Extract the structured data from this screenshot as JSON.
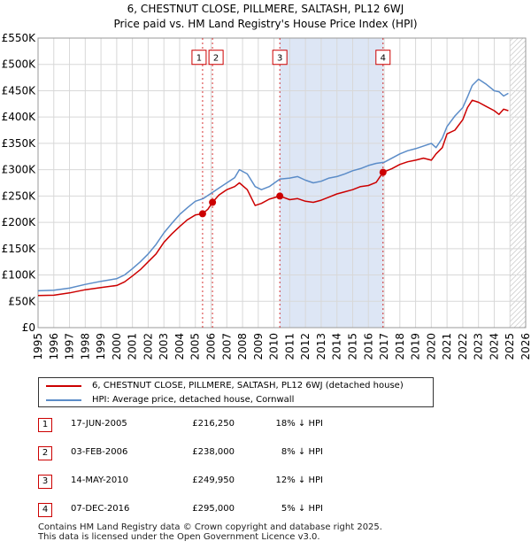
{
  "header": {
    "title_line1": "6, CHESTNUT CLOSE, PILLMERE, SALTASH, PL12 6WJ",
    "title_line2": "Price paid vs. HM Land Registry's House Price Index (HPI)"
  },
  "colors": {
    "property_line": "#cc0000",
    "hpi_line": "#5b8cc8",
    "shade": "#dde6f5",
    "grid": "#d8d8d8",
    "marker_box": "#cc0000"
  },
  "legend": {
    "property_label": "6, CHESTNUT CLOSE, PILLMERE, SALTASH, PL12 6WJ (detached house)",
    "hpi_label": "HPI: Average price, detached house, Cornwall"
  },
  "sales": [
    {
      "num": "1",
      "date": "17-JUN-2005",
      "price": "£216,250",
      "pct": "18% ↓ HPI"
    },
    {
      "num": "2",
      "date": "03-FEB-2006",
      "price": "£238,000",
      "pct": "8% ↓ HPI"
    },
    {
      "num": "3",
      "date": "14-MAY-2010",
      "price": "£249,950",
      "pct": "12% ↓ HPI"
    },
    {
      "num": "4",
      "date": "07-DEC-2016",
      "price": "£295,000",
      "pct": "5% ↓ HPI"
    }
  ],
  "footer": {
    "line1": "Contains HM Land Registry data © Crown copyright and database right 2025.",
    "line2": "This data is licensed under the Open Government Licence v3.0."
  },
  "chart_data": {
    "type": "line",
    "title": "Price paid vs. HM Land Registry's House Price Index (HPI)",
    "xlim": [
      1995,
      2026
    ],
    "ylim": [
      0,
      550000
    ],
    "x_ticks": [
      1995,
      1996,
      1997,
      1998,
      1999,
      2000,
      2001,
      2002,
      2003,
      2004,
      2005,
      2006,
      2007,
      2008,
      2009,
      2010,
      2011,
      2012,
      2013,
      2014,
      2015,
      2016,
      2017,
      2018,
      2019,
      2020,
      2021,
      2022,
      2023,
      2024,
      2025,
      2026
    ],
    "y_ticks": [
      {
        "value": 0,
        "label": "£0"
      },
      {
        "value": 50000,
        "label": "£50K"
      },
      {
        "value": 100000,
        "label": "£100K"
      },
      {
        "value": 150000,
        "label": "£150K"
      },
      {
        "value": 200000,
        "label": "£200K"
      },
      {
        "value": 250000,
        "label": "£250K"
      },
      {
        "value": 300000,
        "label": "£300K"
      },
      {
        "value": 350000,
        "label": "£350K"
      },
      {
        "value": 400000,
        "label": "£400K"
      },
      {
        "value": 450000,
        "label": "£450K"
      },
      {
        "value": 500000,
        "label": "£500K"
      },
      {
        "value": 550000,
        "label": "£550K"
      }
    ],
    "shaded_period": [
      2010.37,
      2016.93
    ],
    "forecast_start": 2025.0,
    "markers": [
      {
        "label": "1",
        "x": 2005.46,
        "y": 216250
      },
      {
        "label": "2",
        "x": 2006.09,
        "y": 238000
      },
      {
        "label": "3",
        "x": 2010.37,
        "y": 249950
      },
      {
        "label": "4",
        "x": 2016.93,
        "y": 295000
      }
    ],
    "series": [
      {
        "name": "6, CHESTNUT CLOSE, PILLMERE, SALTASH, PL12 6WJ (detached house)",
        "x": [
          1995,
          1996,
          1997,
          1998,
          1999,
          2000,
          2000.5,
          2001,
          2001.5,
          2002,
          2002.5,
          2003,
          2003.5,
          2004,
          2004.5,
          2005,
          2005.46,
          2005.8,
          2006.09,
          2006.5,
          2007,
          2007.5,
          2007.8,
          2008.3,
          2008.8,
          2009.2,
          2009.7,
          2010.37,
          2011,
          2011.5,
          2012,
          2012.5,
          2013,
          2013.5,
          2014,
          2014.5,
          2015,
          2015.5,
          2016,
          2016.5,
          2016.93,
          2017.5,
          2018,
          2018.5,
          2019,
          2019.5,
          2020,
          2020.3,
          2020.7,
          2021,
          2021.5,
          2022,
          2022.3,
          2022.6,
          2023,
          2023.5,
          2024,
          2024.3,
          2024.6,
          2024.9
        ],
        "y": [
          61000,
          61500,
          66000,
          72000,
          76000,
          80000,
          87000,
          98000,
          110000,
          125000,
          140000,
          162000,
          178000,
          192000,
          205000,
          214000,
          216250,
          225000,
          238000,
          252000,
          262000,
          268000,
          275000,
          262000,
          232000,
          236000,
          244000,
          249950,
          243000,
          245000,
          240000,
          238000,
          242000,
          248000,
          254000,
          258000,
          262000,
          268000,
          270000,
          276000,
          295000,
          302000,
          310000,
          315000,
          318000,
          322000,
          318000,
          330000,
          342000,
          368000,
          375000,
          395000,
          418000,
          432000,
          428000,
          420000,
          412000,
          405000,
          415000,
          412000
        ]
      },
      {
        "name": "HPI: Average price, detached house, Cornwall",
        "x": [
          1995,
          1996,
          1997,
          1998,
          1999,
          2000,
          2000.5,
          2001,
          2001.5,
          2002,
          2002.5,
          2003,
          2003.5,
          2004,
          2004.5,
          2005,
          2005.5,
          2006,
          2006.5,
          2007,
          2007.5,
          2007.8,
          2008.3,
          2008.8,
          2009.2,
          2009.7,
          2010.37,
          2011,
          2011.5,
          2012,
          2012.5,
          2013,
          2013.5,
          2014,
          2014.5,
          2015,
          2015.5,
          2016,
          2016.5,
          2017,
          2017.5,
          2018,
          2018.5,
          2019,
          2019.5,
          2020,
          2020.3,
          2020.7,
          2021,
          2021.5,
          2022,
          2022.3,
          2022.6,
          2023,
          2023.5,
          2024,
          2024.3,
          2024.6,
          2024.9
        ],
        "y": [
          70000,
          71000,
          75000,
          82000,
          88000,
          93000,
          100000,
          112000,
          125000,
          140000,
          158000,
          180000,
          198000,
          215000,
          228000,
          240000,
          245000,
          255000,
          265000,
          275000,
          285000,
          300000,
          292000,
          268000,
          262000,
          268000,
          282000,
          284000,
          287000,
          280000,
          275000,
          278000,
          284000,
          287000,
          292000,
          298000,
          302000,
          308000,
          312000,
          314000,
          322000,
          330000,
          336000,
          340000,
          345000,
          350000,
          342000,
          360000,
          382000,
          402000,
          418000,
          438000,
          460000,
          472000,
          462000,
          450000,
          448000,
          440000,
          445000
        ]
      }
    ]
  }
}
